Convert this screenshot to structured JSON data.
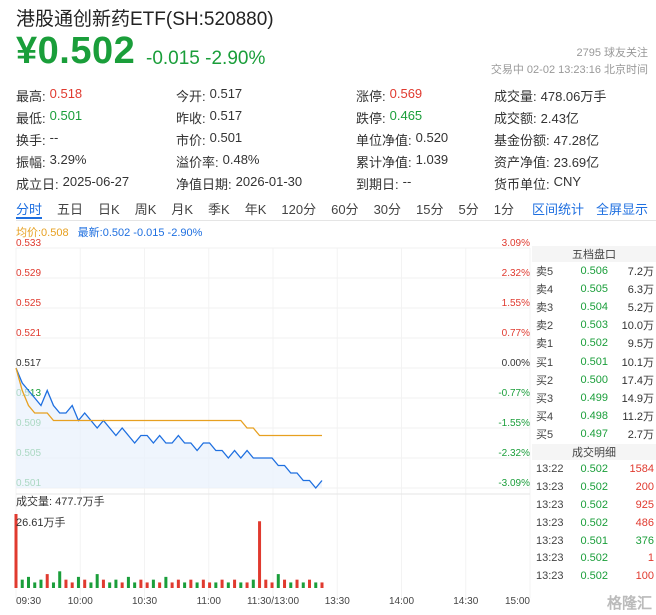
{
  "header": {
    "title": "港股通创新药ETF(SH:520880)",
    "price": "¥0.502",
    "change": "-0.015 -2.90%",
    "followers": "2795 球友关注",
    "status": "交易中 02-02 13:23:16 北京时间"
  },
  "quote_rows": [
    [
      [
        "最高:",
        "0.518",
        "red"
      ],
      [
        "今开:",
        "0.517",
        ""
      ],
      [
        "涨停:",
        "0.569",
        "red"
      ],
      [
        "成交量:",
        "478.06万手",
        ""
      ]
    ],
    [
      [
        "最低:",
        "0.501",
        "green"
      ],
      [
        "昨收:",
        "0.517",
        ""
      ],
      [
        "跌停:",
        "0.465",
        "green"
      ],
      [
        "成交额:",
        "2.43亿",
        ""
      ]
    ],
    [
      [
        "换手:",
        "--",
        ""
      ],
      [
        "市价:",
        "0.501",
        ""
      ],
      [
        "单位净值:",
        "0.520",
        ""
      ],
      [
        "基金份额:",
        "47.28亿",
        ""
      ]
    ],
    [
      [
        "振幅:",
        "3.29%",
        ""
      ],
      [
        "溢价率:",
        "0.48%",
        ""
      ],
      [
        "累计净值:",
        "1.039",
        ""
      ],
      [
        "资产净值:",
        "23.69亿",
        ""
      ]
    ],
    [
      [
        "成立日:",
        "2025-06-27",
        ""
      ],
      [
        "净值日期:",
        "2026-01-30",
        ""
      ],
      [
        "到期日:",
        "--",
        ""
      ],
      [
        "货币单位:",
        "CNY",
        ""
      ]
    ]
  ],
  "tabs": [
    "分时",
    "五日",
    "日K",
    "周K",
    "月K",
    "季K",
    "年K",
    "120分",
    "60分",
    "30分",
    "15分",
    "5分",
    "1分"
  ],
  "tabs_right": [
    "区间统计",
    "全屏显示"
  ],
  "legend": {
    "avg": "均价:0.508",
    "last": "最新:0.502 -0.015 -2.90%"
  },
  "panel_title": "五档盘口",
  "order_book": [
    {
      "label": "卖5",
      "price": "0.506",
      "vol": "7.2万"
    },
    {
      "label": "卖4",
      "price": "0.505",
      "vol": "6.3万"
    },
    {
      "label": "卖3",
      "price": "0.504",
      "vol": "5.2万"
    },
    {
      "label": "卖2",
      "price": "0.503",
      "vol": "10.0万"
    },
    {
      "label": "卖1",
      "price": "0.502",
      "vol": "9.5万"
    },
    {
      "label": "买1",
      "price": "0.501",
      "vol": "10.1万"
    },
    {
      "label": "买2",
      "price": "0.500",
      "vol": "17.4万"
    },
    {
      "label": "买3",
      "price": "0.499",
      "vol": "14.9万"
    },
    {
      "label": "买4",
      "price": "0.498",
      "vol": "11.2万"
    },
    {
      "label": "买5",
      "price": "0.497",
      "vol": "2.7万"
    }
  ],
  "trades_title": "成交明细",
  "trades": [
    {
      "time": "13:22",
      "price": "0.502",
      "vol": "1584",
      "dir": "buy"
    },
    {
      "time": "13:23",
      "price": "0.502",
      "vol": "200",
      "dir": "buy"
    },
    {
      "time": "13:23",
      "price": "0.502",
      "vol": "925",
      "dir": "buy"
    },
    {
      "time": "13:23",
      "price": "0.502",
      "vol": "486",
      "dir": "buy"
    },
    {
      "time": "13:23",
      "price": "0.501",
      "vol": "376",
      "dir": "sell"
    },
    {
      "time": "13:23",
      "price": "0.502",
      "vol": "1",
      "dir": "buy"
    },
    {
      "time": "13:23",
      "price": "0.502",
      "vol": "100",
      "dir": "buy"
    }
  ],
  "volume": {
    "label": "成交量: 477.7万手",
    "max": "26.61万手"
  },
  "watermark": "格隆汇",
  "chart_data": {
    "type": "line",
    "y_ticks_price": [
      "0.533",
      "0.529",
      "0.525",
      "0.521",
      "0.517",
      "0.513",
      "0.509",
      "0.505",
      "0.501"
    ],
    "y_ticks_pct": [
      "3.09%",
      "2.32%",
      "1.55%",
      "0.77%",
      "0.00%",
      "-0.77%",
      "-1.55%",
      "-2.32%",
      "-3.09%"
    ],
    "x_ticks": [
      "09:30",
      "10:00",
      "10:30",
      "11:00",
      "11:30/13:00",
      "13:30",
      "14:00",
      "14:30",
      "15:00"
    ],
    "ylim": [
      0.501,
      0.533
    ],
    "prev_close": 0.517,
    "series": [
      {
        "name": "最新",
        "color": "#1e6fe0",
        "values": [
          0.517,
          0.515,
          0.514,
          0.513,
          0.512,
          0.514,
          0.512,
          0.511,
          0.511,
          0.512,
          0.51,
          0.511,
          0.51,
          0.509,
          0.51,
          0.509,
          0.508,
          0.509,
          0.508,
          0.507,
          0.508,
          0.508,
          0.507,
          0.508,
          0.507,
          0.507,
          0.508,
          0.507,
          0.507,
          0.506,
          0.507,
          0.507,
          0.506,
          0.506,
          0.505,
          0.506,
          0.505,
          0.506,
          0.505,
          0.505,
          0.505,
          0.505,
          0.504,
          0.504,
          0.503,
          0.503,
          0.502,
          0.502,
          0.501,
          0.502
        ]
      },
      {
        "name": "均价",
        "color": "#e7a020",
        "values": [
          0.517,
          0.514,
          0.512,
          0.511,
          0.511,
          0.511,
          0.51,
          0.51,
          0.51,
          0.51,
          0.51,
          0.51,
          0.51,
          0.51,
          0.51,
          0.51,
          0.51,
          0.51,
          0.51,
          0.51,
          0.51,
          0.51,
          0.51,
          0.51,
          0.51,
          0.51,
          0.51,
          0.51,
          0.51,
          0.51,
          0.51,
          0.51,
          0.51,
          0.51,
          0.51,
          0.51,
          0.51,
          0.509,
          0.509,
          0.508,
          0.508,
          0.508,
          0.508,
          0.508,
          0.508,
          0.508,
          0.508,
          0.508,
          0.508,
          0.508
        ]
      }
    ],
    "volume_values": [
      26.61,
      3,
      4,
      2,
      3,
      5,
      2,
      6,
      3,
      2,
      4,
      3,
      2,
      5,
      3,
      2,
      3,
      2,
      4,
      2,
      3,
      2,
      3,
      2,
      4,
      2,
      3,
      2,
      3,
      2,
      3,
      2,
      2,
      3,
      2,
      3,
      2,
      2,
      3,
      24,
      3,
      2,
      5,
      3,
      2,
      3,
      2,
      3,
      2,
      2
    ]
  }
}
